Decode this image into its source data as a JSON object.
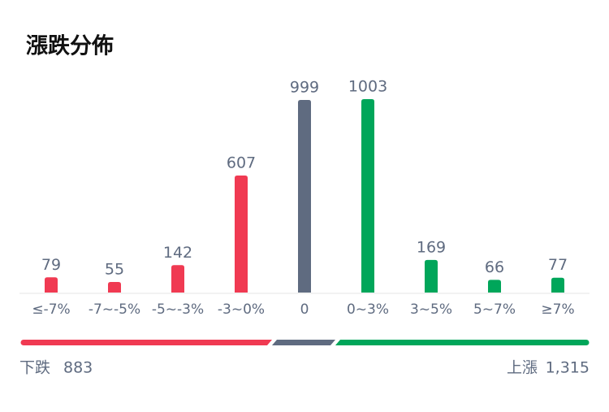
{
  "chart_data": {
    "type": "bar",
    "title": "漲跌分佈",
    "categories": [
      "≤-7%",
      "-7~-5%",
      "-5~-3%",
      "-3~0%",
      "0",
      "0~3%",
      "3~5%",
      "5~7%",
      "≥7%"
    ],
    "values": [
      79,
      55,
      142,
      607,
      999,
      1003,
      169,
      66,
      77
    ],
    "colors": [
      "#f03a52",
      "#f03a52",
      "#f03a52",
      "#f03a52",
      "#5f6b80",
      "#00a65a",
      "#00a65a",
      "#00a65a",
      "#00a65a"
    ],
    "summary": {
      "down_label": "下跌",
      "down": 883,
      "up_label": "上漲",
      "up": {
        "value": 1315,
        "label": "1,315"
      }
    }
  }
}
